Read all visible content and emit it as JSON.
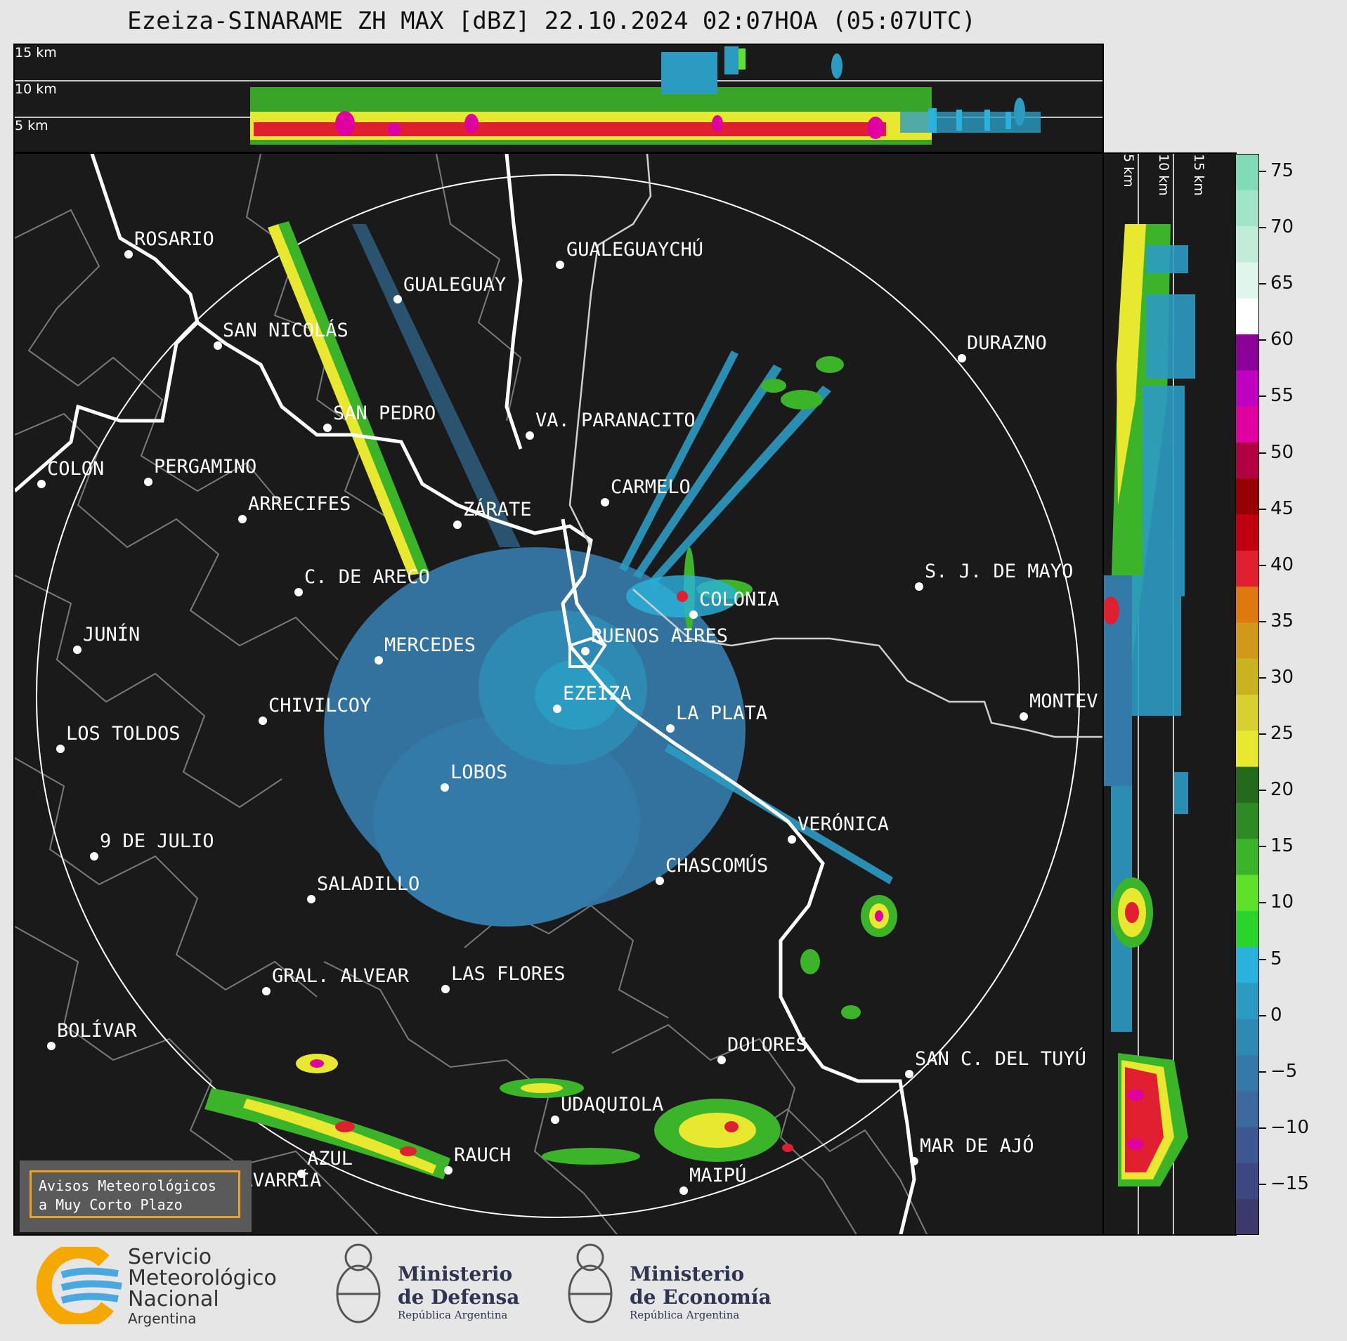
{
  "title": "Ezeiza-SINARAME ZH MAX [dBZ] 22.10.2024 02:07HOA (05:07UTC)",
  "top_panel": {
    "levels": [
      "15 km",
      "10 km",
      "5 km"
    ]
  },
  "side_panel": {
    "levels": [
      "5 km",
      "10 km",
      "15 km"
    ]
  },
  "colorbar": {
    "unit": "dBZ",
    "ticks": [
      "75",
      "70",
      "65",
      "60",
      "55",
      "50",
      "45",
      "40",
      "35",
      "30",
      "25",
      "20",
      "15",
      "10",
      "5",
      "0",
      "−5",
      "−10",
      "−15"
    ],
    "colors": [
      "#3b3a6a",
      "#3d4880",
      "#3f5790",
      "#3a6a9e",
      "#347aa8",
      "#2f8ab3",
      "#2b9bc2",
      "#2bb2dc",
      "#2bd42b",
      "#5fe02a",
      "#3cb42a",
      "#2e8a22",
      "#236b1a",
      "#e8e830",
      "#d8d030",
      "#c8b420",
      "#d09a18",
      "#e07810",
      "#e02030",
      "#c00010",
      "#980000",
      "#b00040",
      "#e000a0",
      "#c000c0",
      "#8a0098",
      "#ffffff",
      "#e0f5ec",
      "#c0ecd8",
      "#a0e4c8",
      "#80dcb8"
    ]
  },
  "cities": [
    {
      "name": "ROSARIO"
    },
    {
      "name": "GUALEGUAYCHÚ"
    },
    {
      "name": "GUALEGUAY"
    },
    {
      "name": "SAN NICOLÁS"
    },
    {
      "name": "DURAZNO"
    },
    {
      "name": "SAN PEDRO"
    },
    {
      "name": "VA. PARANACITO"
    },
    {
      "name": "COLON"
    },
    {
      "name": "PERGAMINO"
    },
    {
      "name": "CARMELO"
    },
    {
      "name": "ARRECIFES"
    },
    {
      "name": "ZÁRATE"
    },
    {
      "name": "S. J. DE MAYO"
    },
    {
      "name": "C. DE ARECO"
    },
    {
      "name": "COLONIA"
    },
    {
      "name": "JUNÍN"
    },
    {
      "name": "BUENOS AIRES"
    },
    {
      "name": "MERCEDES"
    },
    {
      "name": "EZEIZA"
    },
    {
      "name": "MONTEV"
    },
    {
      "name": "CHIVILCOY"
    },
    {
      "name": "LA PLATA"
    },
    {
      "name": "LOS TOLDOS"
    },
    {
      "name": "LOBOS"
    },
    {
      "name": "VERÓNICA"
    },
    {
      "name": "9 DE JULIO"
    },
    {
      "name": "CHASCOMÚS"
    },
    {
      "name": "SALADILLO"
    },
    {
      "name": "GRAL. ALVEAR"
    },
    {
      "name": "LAS FLORES"
    },
    {
      "name": "BOLÍVAR"
    },
    {
      "name": "DOLORES"
    },
    {
      "name": "SAN C. DEL TUYÚ"
    },
    {
      "name": "UDAQUIOLA"
    },
    {
      "name": "MAR DE AJÓ"
    },
    {
      "name": "AZUL"
    },
    {
      "name": "RAUCH"
    },
    {
      "name": "OLAVARRÍA"
    },
    {
      "name": "MAIPÚ"
    }
  ],
  "avisos": {
    "line1": "Avisos Meteorológicos",
    "line2": "a Muy Corto Plazo"
  },
  "logos": {
    "smn": {
      "line1": "Servicio",
      "line2": "Meteorológico",
      "line3": "Nacional",
      "line4": "Argentina"
    },
    "defensa": {
      "line1": "Ministerio",
      "line2": "de Defensa",
      "line3": "República Argentina"
    },
    "economia": {
      "line1": "Ministerio",
      "line2": "de Economía",
      "line3": "República Argentina"
    }
  }
}
